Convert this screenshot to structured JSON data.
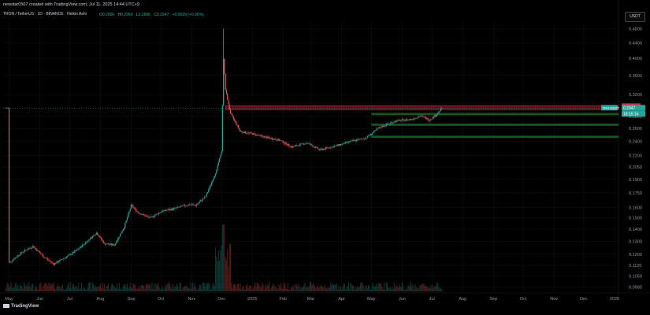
{
  "header": {
    "created_by": "newstar0507 created with TradingView.com, Jul 11, 2025 14:44 UTC+9",
    "symbol": "TRON / TetherUS · 1D · BINANCE · Heikin Ashi",
    "ohlc": [
      {
        "k": "O",
        "v": "0.2896"
      },
      {
        "k": "H",
        "v": "0.2960"
      },
      {
        "k": "L",
        "v": "0.2896"
      },
      {
        "k": "C",
        "v": "0.2947"
      },
      {
        "k": "",
        "v": "+0.0029 (+0.99%)"
      }
    ]
  },
  "currency_label": "USDT",
  "logo_text": "TradingView",
  "colors": {
    "background": "#000000",
    "up": "#26a69a",
    "down": "#ef5350",
    "resistance": "#b2263a",
    "support": "#1e7a2e",
    "axis_text": "#9598a1",
    "grid": "#151515"
  },
  "price_tags": [
    {
      "label": "0.2956",
      "color": "#c0303e"
    },
    {
      "label": "TRXUSDT",
      "color": "#26a69a"
    },
    {
      "label": "0.2947",
      "color": "#26a69a"
    },
    {
      "label": "18:15:16",
      "color": "#26a69a"
    }
  ],
  "chart_data": {
    "type": "candlestick",
    "style": "Heikin Ashi",
    "yaxis": {
      "scale": "log",
      "ticks": [
        "0.4800",
        "0.4400",
        "0.4000",
        "0.3600",
        "0.3200",
        "0.2800",
        "0.2600",
        "0.2400",
        "0.2200",
        "0.2050",
        "0.1900",
        "0.1750",
        "0.1600",
        "0.1500",
        "0.1400",
        "0.1300",
        "0.1200",
        "0.1120",
        "0.1050",
        "0.0980"
      ]
    },
    "xaxis": {
      "ticks": [
        "May",
        "Jun",
        "Jul",
        "Aug",
        "Sep",
        "Oct",
        "Nov",
        "Dec",
        "2025",
        "Feb",
        "Mar",
        "Apr",
        "May",
        "Jun",
        "Jul",
        "Aug",
        "Sep",
        "Oct",
        "Nov",
        "Dec",
        "2026"
      ]
    },
    "path": [
      [
        "2024-05-01",
        0.114
      ],
      [
        "2024-05-15",
        0.122
      ],
      [
        "2024-05-25",
        0.126
      ],
      [
        "2024-06-05",
        0.118
      ],
      [
        "2024-06-15",
        0.113
      ],
      [
        "2024-06-30",
        0.119
      ],
      [
        "2024-07-10",
        0.124
      ],
      [
        "2024-07-20",
        0.131
      ],
      [
        "2024-07-28",
        0.137
      ],
      [
        "2024-08-05",
        0.128
      ],
      [
        "2024-08-15",
        0.127
      ],
      [
        "2024-08-25",
        0.142
      ],
      [
        "2024-09-01",
        0.162
      ],
      [
        "2024-09-08",
        0.155
      ],
      [
        "2024-09-20",
        0.15
      ],
      [
        "2024-10-01",
        0.156
      ],
      [
        "2024-10-15",
        0.159
      ],
      [
        "2024-10-30",
        0.163
      ],
      [
        "2024-11-05",
        0.162
      ],
      [
        "2024-11-15",
        0.171
      ],
      [
        "2024-11-25",
        0.198
      ],
      [
        "2024-12-01",
        0.225
      ],
      [
        "2024-12-03",
        0.4
      ],
      [
        "2024-12-05",
        0.33
      ],
      [
        "2024-12-10",
        0.285
      ],
      [
        "2024-12-20",
        0.255
      ],
      [
        "2024-12-31",
        0.252
      ],
      [
        "2025-01-15",
        0.246
      ],
      [
        "2025-01-28",
        0.242
      ],
      [
        "2025-02-10",
        0.232
      ],
      [
        "2025-02-25",
        0.238
      ],
      [
        "2025-03-10",
        0.228
      ],
      [
        "2025-03-25",
        0.233
      ],
      [
        "2025-04-10",
        0.24
      ],
      [
        "2025-04-25",
        0.245
      ],
      [
        "2025-05-10",
        0.262
      ],
      [
        "2025-05-25",
        0.272
      ],
      [
        "2025-06-10",
        0.275
      ],
      [
        "2025-06-20",
        0.281
      ],
      [
        "2025-06-28",
        0.274
      ],
      [
        "2025-07-05",
        0.282
      ],
      [
        "2025-07-11",
        0.2947
      ]
    ],
    "spike_high": 0.48,
    "last_close": 0.2947,
    "resistance_zone": [
      0.292,
      0.299
    ],
    "support_levels": [
      0.284,
      0.266,
      0.247
    ],
    "volume": "bars along bottom"
  }
}
